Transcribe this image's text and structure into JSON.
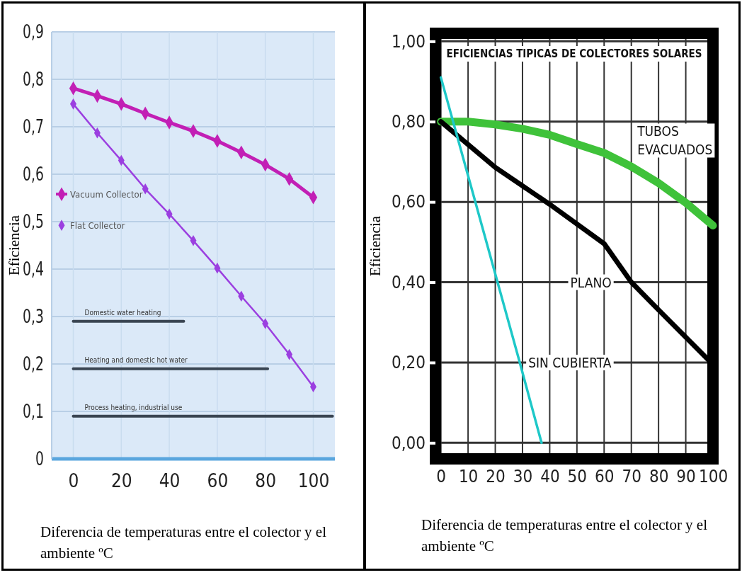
{
  "chart_data": [
    {
      "type": "line",
      "xlabel": "Diferencia de temperaturas entre el colector y el ambiente ºC",
      "ylabel": "Eficiencia",
      "xlim": [
        -9,
        109
      ],
      "xticks": [
        0,
        20,
        40,
        60,
        80,
        100
      ],
      "ylim": [
        0,
        0.9
      ],
      "yticks": [
        {
          "value": 0,
          "label": "0"
        },
        {
          "value": 0.1,
          "label": "0,1"
        },
        {
          "value": 0.2,
          "label": "0,2"
        },
        {
          "value": 0.3,
          "label": "0,3"
        },
        {
          "value": 0.4,
          "label": "0,4"
        },
        {
          "value": 0.5,
          "label": "0,5"
        },
        {
          "value": 0.6,
          "label": "0,6"
        },
        {
          "value": 0.7,
          "label": "0,7"
        },
        {
          "value": 0.8,
          "label": "0,8"
        },
        {
          "value": 0.9,
          "label": "0,9"
        }
      ],
      "grid": true,
      "legend": "left",
      "marker": "diamond",
      "x": [
        0,
        10,
        20,
        30,
        40,
        50,
        60,
        70,
        80,
        90,
        100
      ],
      "series": [
        {
          "name": "Vacuum Collector",
          "color": "#c21fb5",
          "values": [
            0.781,
            0.765,
            0.748,
            0.728,
            0.709,
            0.691,
            0.67,
            0.646,
            0.62,
            0.59,
            0.551
          ]
        },
        {
          "name": "Flat Collector",
          "color": "#9b3fe0",
          "values": [
            0.748,
            0.687,
            0.629,
            0.569,
            0.516,
            0.46,
            0.402,
            0.343,
            0.285,
            0.22,
            0.152
          ]
        },
        {
          "name": "Domestic water heating",
          "color": "#3a4552",
          "marker": "none",
          "x": [
            0,
            46
          ],
          "values": [
            0.29,
            0.29
          ]
        },
        {
          "name": "Heating and domestic hot water",
          "color": "#3a4552",
          "marker": "none",
          "x": [
            0,
            81
          ],
          "values": [
            0.19,
            0.19
          ]
        },
        {
          "name": "Process heating, industrial use",
          "color": "#3a4552",
          "marker": "none",
          "x": [
            0,
            108
          ],
          "values": [
            0.09,
            0.09
          ]
        }
      ]
    },
    {
      "type": "line",
      "title": "EFICIENCIAS TIPICAS DE COLECTORES SOLARES",
      "xlabel": "Diferencia de temperaturas entre el colector y el ambiente ºC",
      "ylabel": "Eficiencia",
      "xlim": [
        -2,
        100
      ],
      "xticks": [
        0,
        10,
        20,
        30,
        40,
        50,
        60,
        70,
        80,
        90,
        100
      ],
      "ylim": [
        -0.04,
        1.02
      ],
      "yticks": [
        {
          "value": 0,
          "label": "0,00"
        },
        {
          "value": 0.2,
          "label": "0,20"
        },
        {
          "value": 0.4,
          "label": "0,40"
        },
        {
          "value": 0.6,
          "label": "0,60"
        },
        {
          "value": 0.8,
          "label": "0,80"
        },
        {
          "value": 1,
          "label": "1,00"
        }
      ],
      "grid": true,
      "marker": "none",
      "series": [
        {
          "color": "#3fc23a",
          "x": [
            0,
            10,
            20,
            30,
            40,
            50,
            60,
            70,
            80,
            90,
            100
          ],
          "values": [
            0.8,
            0.8,
            0.793,
            0.782,
            0.767,
            0.744,
            0.722,
            0.688,
            0.647,
            0.598,
            0.541
          ]
        },
        {
          "color": "#000000",
          "x": [
            0,
            20,
            40,
            60,
            70,
            80,
            100
          ],
          "values": [
            0.8,
            0.686,
            0.594,
            0.496,
            0.4,
            0.331,
            0.195
          ]
        },
        {
          "color": "#1ec8c8",
          "x": [
            0,
            29,
            37
          ],
          "values": [
            0.91,
            0.2,
            0
          ]
        }
      ],
      "annotations": [
        {
          "text": "TUBOS EVACUADOS",
          "x": 80,
          "y": 0.647
        },
        {
          "text": "PLANO",
          "x": 70,
          "y": 0.4
        },
        {
          "text": "SIN CUBIERTA",
          "x": 29,
          "y": 0.2
        }
      ]
    }
  ]
}
